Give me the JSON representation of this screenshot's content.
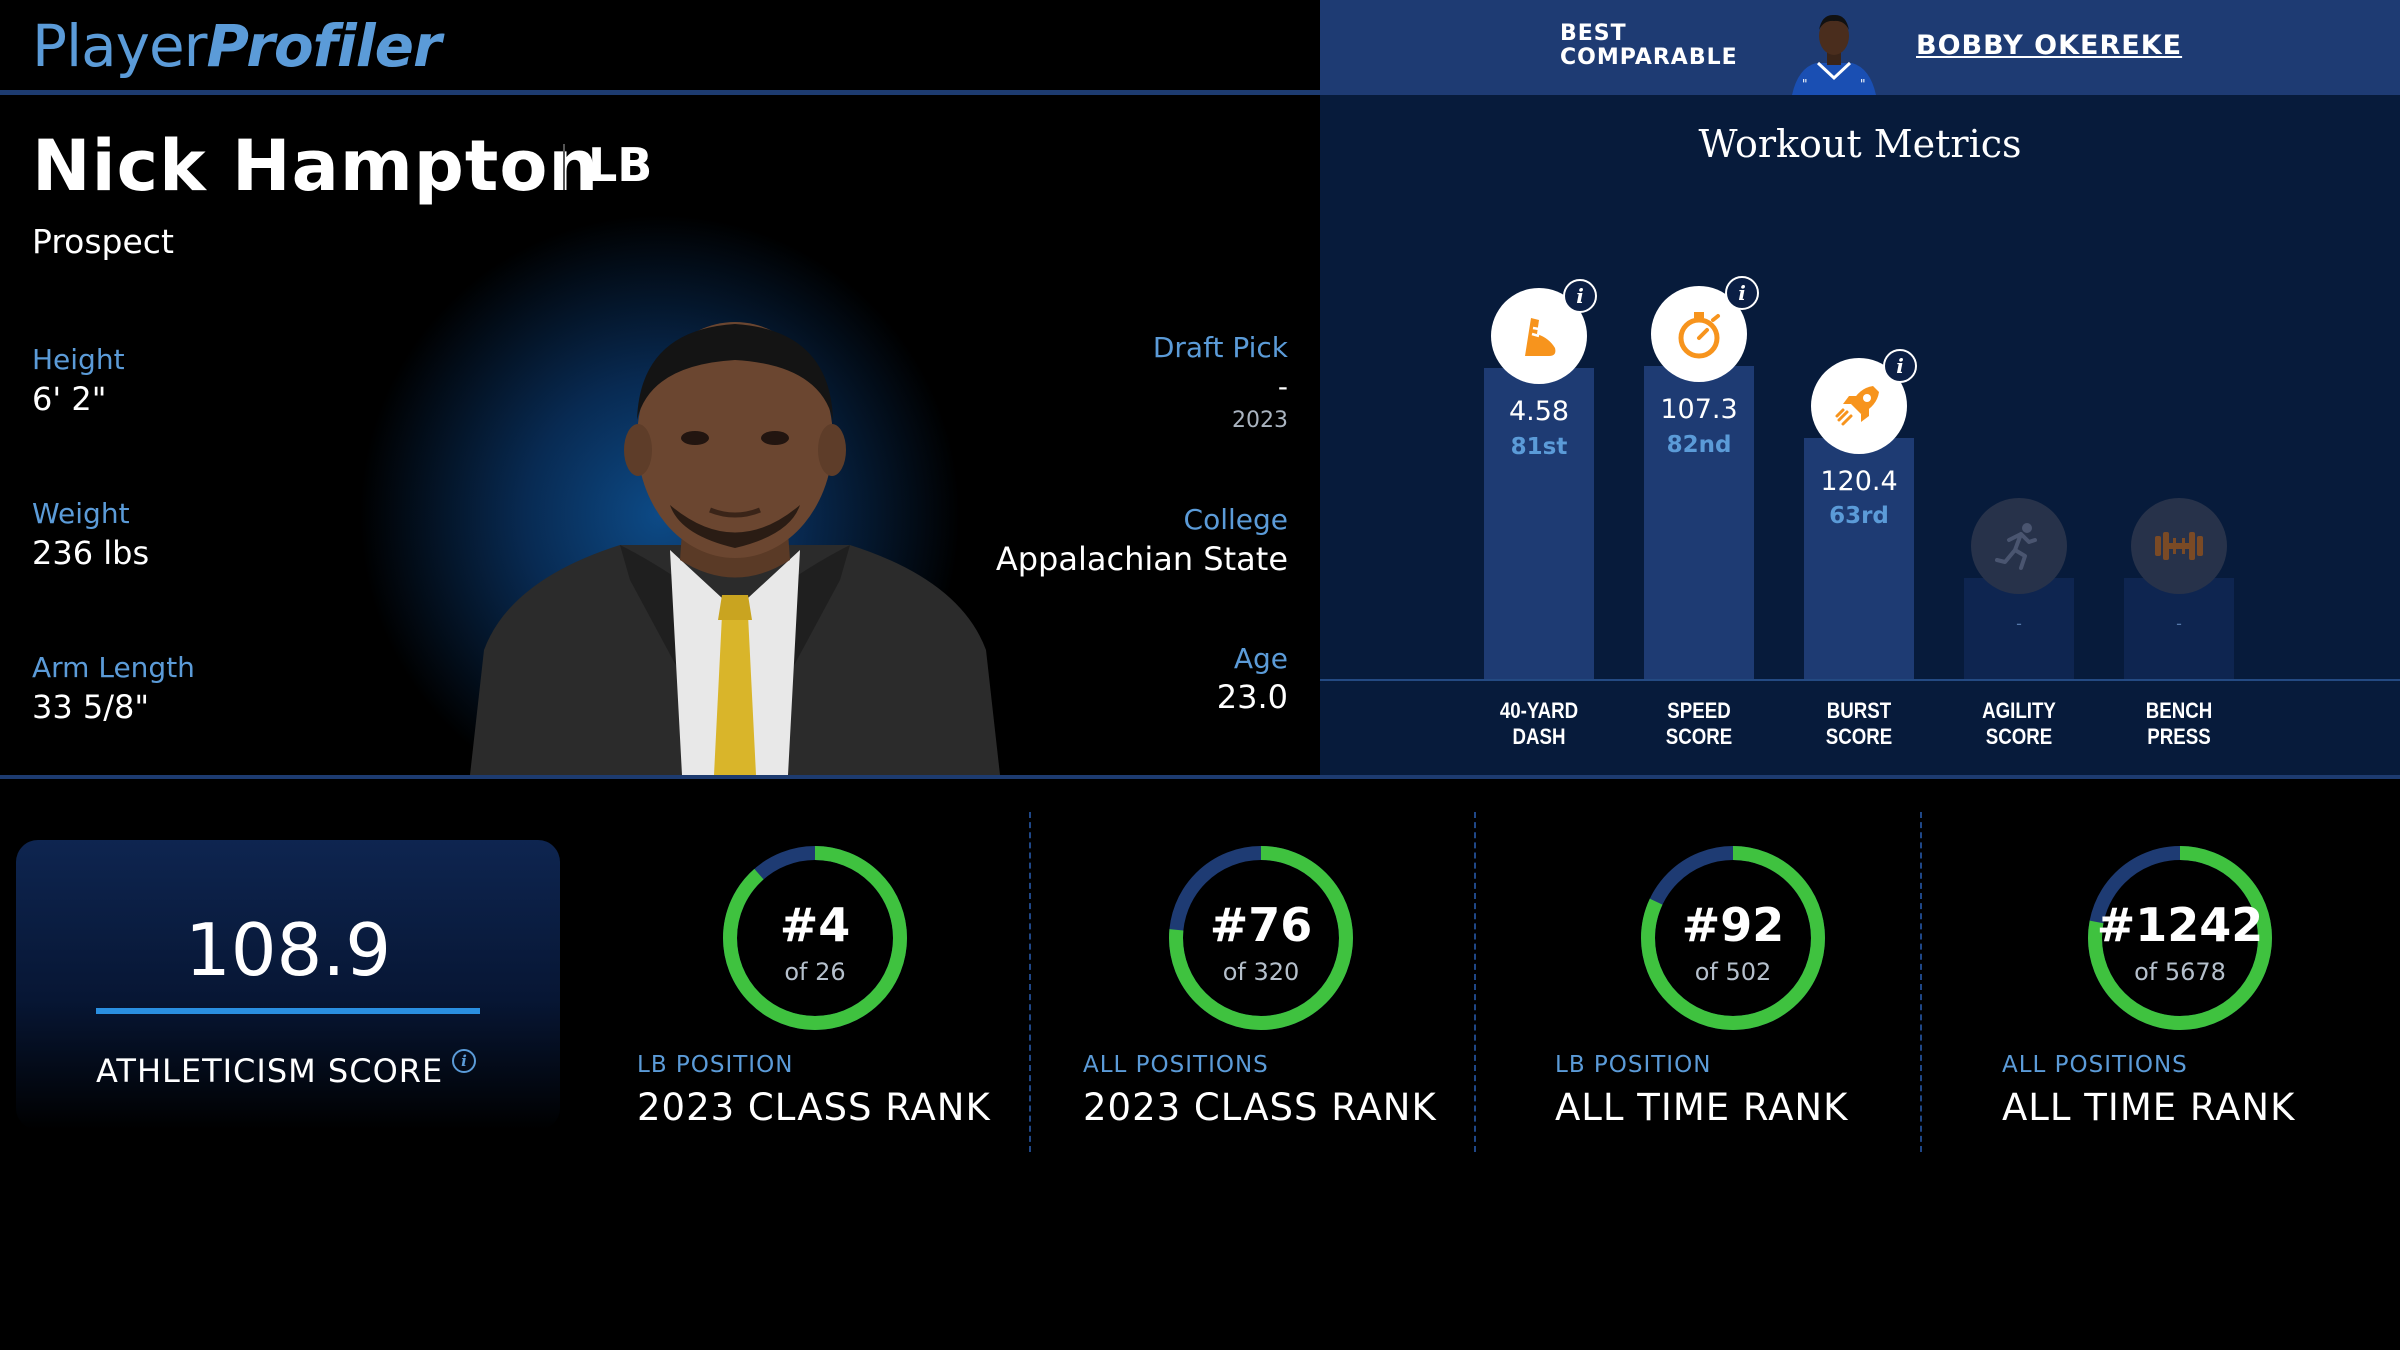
{
  "header": {
    "logo_part1": "Player",
    "logo_part2": "Profiler",
    "comparable_label_line1": "BEST",
    "comparable_label_line2": "COMPARABLE",
    "comparable_name": "BOBBY OKEREKE"
  },
  "player": {
    "name": "Nick Hampton",
    "position": "LB",
    "status": "Prospect",
    "height_label": "Height",
    "height": "6' 2\"",
    "weight_label": "Weight",
    "weight": "236 lbs",
    "arm_label": "Arm Length",
    "arm": "33 5/8\"",
    "draft_label": "Draft Pick",
    "draft_pick": "-",
    "draft_year": "2023",
    "college_label": "College",
    "college": "Appalachian State",
    "age_label": "Age",
    "age": "23.0"
  },
  "workout": {
    "title": "Workout Metrics",
    "metrics": [
      {
        "line1": "40-YARD",
        "line2": "DASH",
        "value": "4.58",
        "percentile": "81st",
        "icon": "shoe-icon",
        "accent": "#f7941d"
      },
      {
        "line1": "SPEED",
        "line2": "SCORE",
        "value": "107.3",
        "percentile": "82nd",
        "icon": "stopwatch-icon",
        "accent": "#f7941d"
      },
      {
        "line1": "BURST",
        "line2": "SCORE",
        "value": "120.4",
        "percentile": "63rd",
        "icon": "rocket-icon",
        "accent": "#f7941d"
      },
      {
        "line1": "AGILITY",
        "line2": "SCORE",
        "value": "-",
        "percentile": "",
        "icon": "runner-icon",
        "accent": "#4a5570"
      },
      {
        "line1": "BENCH",
        "line2": "PRESS",
        "value": "-",
        "percentile": "",
        "icon": "dumbbell-icon",
        "accent": "#7a4a25"
      }
    ]
  },
  "athleticism": {
    "value": "108.9",
    "label": "ATHLETICISM SCORE",
    "info": "i"
  },
  "ranks": [
    {
      "rank": "#4",
      "of": "of 26",
      "sub": "LB POSITION",
      "main": "2023 CLASS RANK",
      "fraction": 0.885
    },
    {
      "rank": "#76",
      "of": "of 320",
      "sub": "ALL POSITIONS",
      "main": "2023 CLASS RANK",
      "fraction": 0.765
    },
    {
      "rank": "#92",
      "of": "of 502",
      "sub": "LB POSITION",
      "main": "ALL TIME RANK",
      "fraction": 0.82
    },
    {
      "rank": "#1242",
      "of": "of 5678",
      "sub": "ALL POSITIONS",
      "main": "ALL TIME RANK",
      "fraction": 0.78
    }
  ],
  "colors": {
    "accent_blue": "#5b9bd8",
    "ring_green": "#3fc23f",
    "ring_track": "#1e3b73",
    "icon_orange": "#f7941d"
  }
}
